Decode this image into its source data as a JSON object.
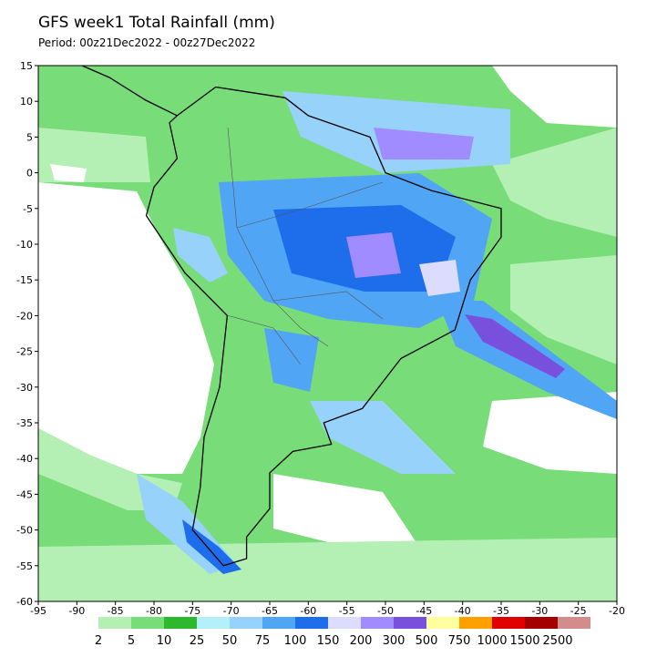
{
  "title": "GFS week1 Total Rainfall (mm)",
  "period": "Period: 00z21Dec2022 - 00z27Dec2022",
  "map": {
    "xlim": [
      -95,
      -20
    ],
    "ylim": [
      -60,
      15
    ],
    "xticks": [
      -95,
      -90,
      -85,
      -80,
      -75,
      -70,
      -65,
      -60,
      -55,
      -50,
      -45,
      -40,
      -35,
      -30,
      -25,
      -20
    ],
    "yticks": [
      15,
      10,
      5,
      0,
      -5,
      -10,
      -15,
      -20,
      -25,
      -30,
      -35,
      -40,
      -45,
      -50,
      -55,
      -60
    ]
  },
  "colorbar": {
    "levels": [
      2,
      5,
      10,
      25,
      50,
      75,
      100,
      150,
      200,
      300,
      500,
      750,
      1000,
      1500,
      2500
    ],
    "colors": [
      "#b4f0b4",
      "#78dc78",
      "#2eb82e",
      "#b4f0fa",
      "#96d2fa",
      "#50a5f5",
      "#1e6eeb",
      "#dcdcff",
      "#a08cff",
      "#7850dc",
      "#ffffa0",
      "#ffa000",
      "#e10000",
      "#a50000",
      "#d28c8c"
    ]
  }
}
